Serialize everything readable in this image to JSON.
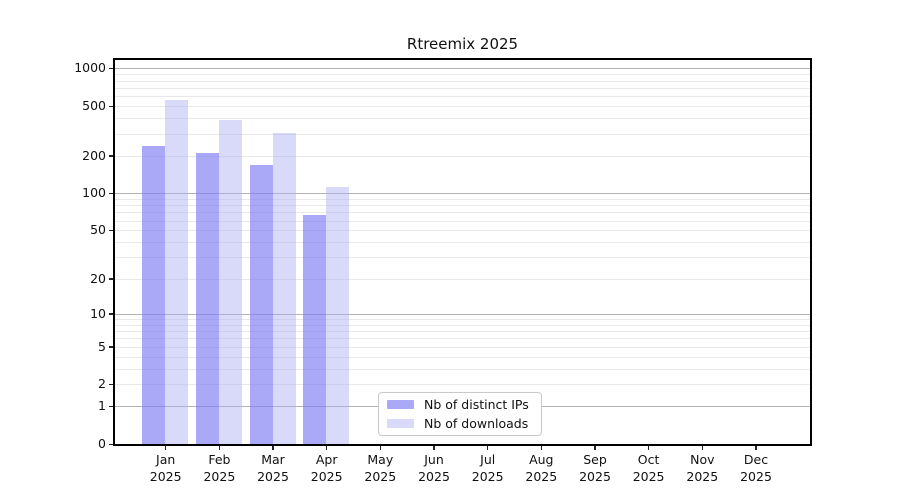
{
  "chart_data": {
    "type": "bar",
    "title": "Rtreemix 2025",
    "categories": [
      "Jan",
      "Feb",
      "Mar",
      "Apr",
      "May",
      "Jun",
      "Jul",
      "Aug",
      "Sep",
      "Oct",
      "Nov",
      "Dec"
    ],
    "year": "2025",
    "series": [
      {
        "name": "Nb of distinct IPs",
        "color": "rgba(123,123,245,0.65)",
        "values": [
          240,
          212,
          168,
          67,
          null,
          null,
          null,
          null,
          null,
          null,
          null,
          null
        ]
      },
      {
        "name": "Nb of downloads",
        "color": "rgba(170,170,244,0.45)",
        "values": [
          560,
          390,
          305,
          112,
          null,
          null,
          null,
          null,
          null,
          null,
          null,
          null
        ]
      }
    ],
    "ytick_labels": [
      "0",
      "1",
      "2",
      "5",
      "10",
      "20",
      "50",
      "100",
      "200",
      "500",
      "1000"
    ],
    "ytick_values": [
      0,
      1,
      2,
      5,
      10,
      20,
      50,
      100,
      200,
      500,
      1000
    ],
    "scale": "log10(1+x)",
    "ylim": [
      0,
      1140
    ],
    "xlabel": "",
    "ylabel": "",
    "grid": {
      "major_color": "#b3b3b3",
      "minor_color": "#e9e9e9",
      "major_at": [
        1,
        10,
        100,
        1000
      ]
    },
    "legend": {
      "position": "inside-bottom-center",
      "entries": [
        "Nb of distinct IPs",
        "Nb of downloads"
      ]
    },
    "spine_color": "#000000",
    "background_color": "#ffffff"
  }
}
